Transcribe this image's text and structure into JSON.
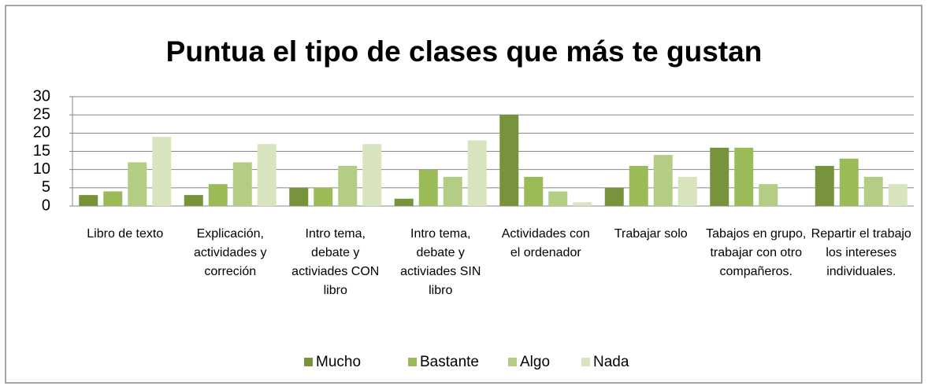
{
  "chart_data": {
    "type": "bar",
    "title": "Puntua el tipo de clases que más te gustan",
    "categories": [
      "Libro de texto",
      "Explicación, actividades y correción",
      "Intro tema, debate y activiades CON libro",
      "Intro tema, debate y activiades SIN libro",
      "Actividades con el ordenador",
      "Trabajar solo",
      "Tabajos en grupo, trabajar con otro compañeros.",
      "Repartir el trabajo los intereses individuales."
    ],
    "series": [
      {
        "name": "Mucho",
        "color": "#77933c",
        "values": [
          3,
          3,
          5,
          2,
          25,
          5,
          16,
          11
        ]
      },
      {
        "name": "Bastante",
        "color": "#9bbb59",
        "values": [
          4,
          6,
          5,
          10,
          8,
          11,
          16,
          13
        ]
      },
      {
        "name": "Algo",
        "color": "#b3cd85",
        "values": [
          12,
          12,
          11,
          8,
          4,
          14,
          6,
          8
        ]
      },
      {
        "name": "Nada",
        "color": "#d7e4bd",
        "values": [
          19,
          17,
          17,
          18,
          1,
          8,
          0,
          6
        ]
      }
    ],
    "ylim": [
      0,
      30
    ],
    "yticks": [
      0,
      5,
      10,
      15,
      20,
      25,
      30
    ],
    "grid": true,
    "legend": "bottom"
  }
}
